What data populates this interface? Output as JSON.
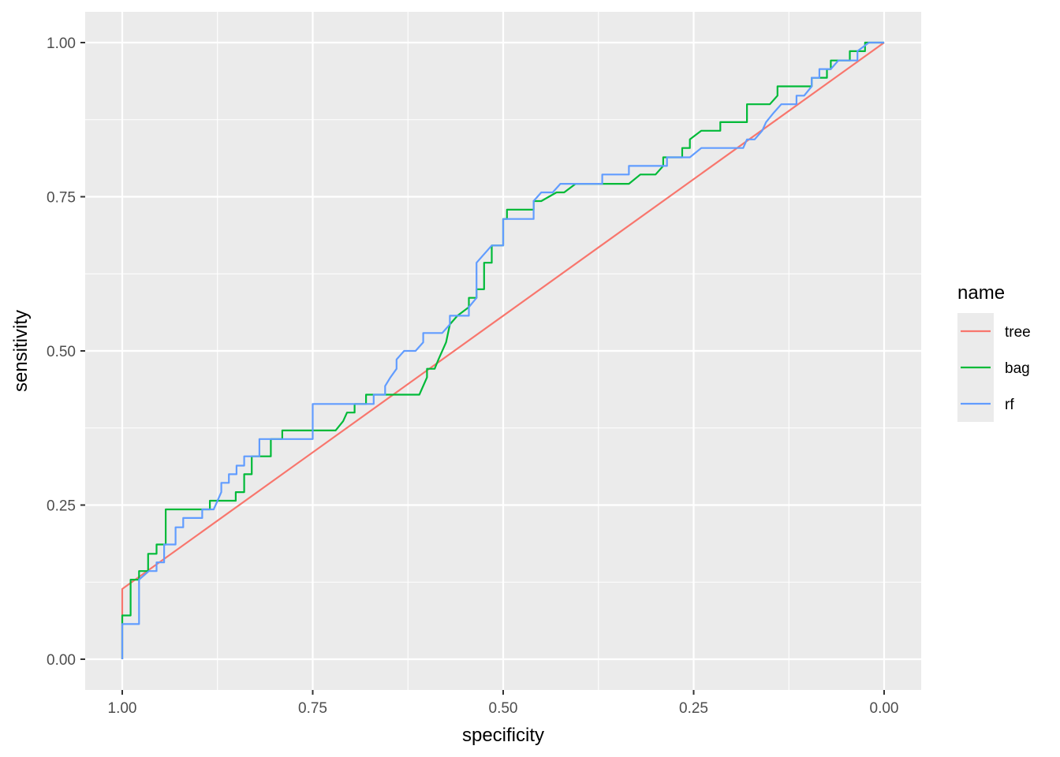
{
  "chart_data": {
    "type": "line",
    "title": "",
    "xlabel": "specificity",
    "ylabel": "sensitivity",
    "x_reversed": true,
    "xlim": [
      1.0,
      0.0
    ],
    "ylim": [
      0.0,
      1.0
    ],
    "x_ticks": [
      "1.00",
      "0.75",
      "0.50",
      "0.25",
      "0.00"
    ],
    "y_ticks": [
      "0.00",
      "0.25",
      "0.50",
      "0.75",
      "1.00"
    ],
    "grid": true,
    "legend": {
      "title": "name",
      "position": "right"
    },
    "series": [
      {
        "name": "tree",
        "color": "#F8766D",
        "points": [
          [
            1.0,
            0.0
          ],
          [
            1.0,
            0.114
          ],
          [
            0.0,
            1.0
          ]
        ]
      },
      {
        "name": "bag",
        "color": "#00BA38",
        "points": [
          [
            1.0,
            0.0
          ],
          [
            1.0,
            0.071
          ],
          [
            0.989,
            0.071
          ],
          [
            0.989,
            0.129
          ],
          [
            0.978,
            0.129
          ],
          [
            0.978,
            0.143
          ],
          [
            0.966,
            0.143
          ],
          [
            0.966,
            0.171
          ],
          [
            0.955,
            0.171
          ],
          [
            0.955,
            0.186
          ],
          [
            0.943,
            0.186
          ],
          [
            0.943,
            0.243
          ],
          [
            0.885,
            0.243
          ],
          [
            0.885,
            0.257
          ],
          [
            0.851,
            0.257
          ],
          [
            0.851,
            0.271
          ],
          [
            0.84,
            0.271
          ],
          [
            0.84,
            0.3
          ],
          [
            0.83,
            0.3
          ],
          [
            0.83,
            0.329
          ],
          [
            0.805,
            0.329
          ],
          [
            0.805,
            0.357
          ],
          [
            0.79,
            0.357
          ],
          [
            0.79,
            0.371
          ],
          [
            0.72,
            0.371
          ],
          [
            0.71,
            0.386
          ],
          [
            0.705,
            0.4
          ],
          [
            0.695,
            0.4
          ],
          [
            0.695,
            0.414
          ],
          [
            0.68,
            0.414
          ],
          [
            0.68,
            0.429
          ],
          [
            0.61,
            0.429
          ],
          [
            0.6,
            0.457
          ],
          [
            0.6,
            0.471
          ],
          [
            0.59,
            0.471
          ],
          [
            0.585,
            0.486
          ],
          [
            0.575,
            0.514
          ],
          [
            0.57,
            0.543
          ],
          [
            0.56,
            0.557
          ],
          [
            0.545,
            0.571
          ],
          [
            0.545,
            0.586
          ],
          [
            0.535,
            0.586
          ],
          [
            0.535,
            0.6
          ],
          [
            0.525,
            0.6
          ],
          [
            0.525,
            0.643
          ],
          [
            0.515,
            0.643
          ],
          [
            0.515,
            0.671
          ],
          [
            0.5,
            0.671
          ],
          [
            0.5,
            0.714
          ],
          [
            0.495,
            0.714
          ],
          [
            0.495,
            0.729
          ],
          [
            0.46,
            0.729
          ],
          [
            0.46,
            0.743
          ],
          [
            0.45,
            0.743
          ],
          [
            0.43,
            0.757
          ],
          [
            0.42,
            0.757
          ],
          [
            0.405,
            0.771
          ],
          [
            0.335,
            0.771
          ],
          [
            0.32,
            0.786
          ],
          [
            0.3,
            0.786
          ],
          [
            0.29,
            0.8
          ],
          [
            0.29,
            0.814
          ],
          [
            0.265,
            0.814
          ],
          [
            0.265,
            0.829
          ],
          [
            0.255,
            0.829
          ],
          [
            0.255,
            0.843
          ],
          [
            0.24,
            0.857
          ],
          [
            0.215,
            0.857
          ],
          [
            0.215,
            0.871
          ],
          [
            0.18,
            0.871
          ],
          [
            0.18,
            0.9
          ],
          [
            0.15,
            0.9
          ],
          [
            0.14,
            0.914
          ],
          [
            0.14,
            0.929
          ],
          [
            0.095,
            0.929
          ],
          [
            0.095,
            0.943
          ],
          [
            0.075,
            0.943
          ],
          [
            0.075,
            0.957
          ],
          [
            0.07,
            0.957
          ],
          [
            0.07,
            0.971
          ],
          [
            0.045,
            0.971
          ],
          [
            0.045,
            0.986
          ],
          [
            0.025,
            0.986
          ],
          [
            0.025,
            1.0
          ],
          [
            0.0,
            1.0
          ]
        ]
      },
      {
        "name": "rf",
        "color": "#619CFF",
        "points": [
          [
            1.0,
            0.0
          ],
          [
            1.0,
            0.057
          ],
          [
            0.978,
            0.057
          ],
          [
            0.978,
            0.129
          ],
          [
            0.965,
            0.143
          ],
          [
            0.955,
            0.143
          ],
          [
            0.955,
            0.157
          ],
          [
            0.95,
            0.157
          ],
          [
            0.945,
            0.157
          ],
          [
            0.945,
            0.186
          ],
          [
            0.93,
            0.186
          ],
          [
            0.93,
            0.214
          ],
          [
            0.92,
            0.214
          ],
          [
            0.92,
            0.229
          ],
          [
            0.895,
            0.229
          ],
          [
            0.895,
            0.243
          ],
          [
            0.88,
            0.243
          ],
          [
            0.875,
            0.257
          ],
          [
            0.87,
            0.271
          ],
          [
            0.87,
            0.286
          ],
          [
            0.86,
            0.286
          ],
          [
            0.86,
            0.3
          ],
          [
            0.85,
            0.3
          ],
          [
            0.85,
            0.314
          ],
          [
            0.84,
            0.314
          ],
          [
            0.84,
            0.329
          ],
          [
            0.82,
            0.329
          ],
          [
            0.82,
            0.357
          ],
          [
            0.75,
            0.357
          ],
          [
            0.75,
            0.414
          ],
          [
            0.67,
            0.414
          ],
          [
            0.67,
            0.429
          ],
          [
            0.655,
            0.429
          ],
          [
            0.655,
            0.443
          ],
          [
            0.648,
            0.457
          ],
          [
            0.64,
            0.471
          ],
          [
            0.64,
            0.486
          ],
          [
            0.63,
            0.5
          ],
          [
            0.615,
            0.5
          ],
          [
            0.605,
            0.514
          ],
          [
            0.605,
            0.529
          ],
          [
            0.58,
            0.529
          ],
          [
            0.57,
            0.543
          ],
          [
            0.57,
            0.557
          ],
          [
            0.545,
            0.557
          ],
          [
            0.545,
            0.571
          ],
          [
            0.535,
            0.586
          ],
          [
            0.535,
            0.643
          ],
          [
            0.515,
            0.671
          ],
          [
            0.5,
            0.671
          ],
          [
            0.5,
            0.714
          ],
          [
            0.46,
            0.714
          ],
          [
            0.46,
            0.743
          ],
          [
            0.45,
            0.757
          ],
          [
            0.435,
            0.757
          ],
          [
            0.425,
            0.771
          ],
          [
            0.37,
            0.771
          ],
          [
            0.37,
            0.786
          ],
          [
            0.335,
            0.786
          ],
          [
            0.335,
            0.8
          ],
          [
            0.285,
            0.8
          ],
          [
            0.285,
            0.814
          ],
          [
            0.255,
            0.814
          ],
          [
            0.24,
            0.829
          ],
          [
            0.185,
            0.829
          ],
          [
            0.18,
            0.843
          ],
          [
            0.17,
            0.843
          ],
          [
            0.16,
            0.857
          ],
          [
            0.155,
            0.871
          ],
          [
            0.145,
            0.886
          ],
          [
            0.135,
            0.9
          ],
          [
            0.115,
            0.9
          ],
          [
            0.115,
            0.914
          ],
          [
            0.105,
            0.914
          ],
          [
            0.095,
            0.929
          ],
          [
            0.095,
            0.943
          ],
          [
            0.085,
            0.943
          ],
          [
            0.085,
            0.957
          ],
          [
            0.07,
            0.957
          ],
          [
            0.06,
            0.971
          ],
          [
            0.035,
            0.971
          ],
          [
            0.035,
            0.986
          ],
          [
            0.02,
            1.0
          ],
          [
            0.0,
            1.0
          ]
        ]
      }
    ]
  }
}
